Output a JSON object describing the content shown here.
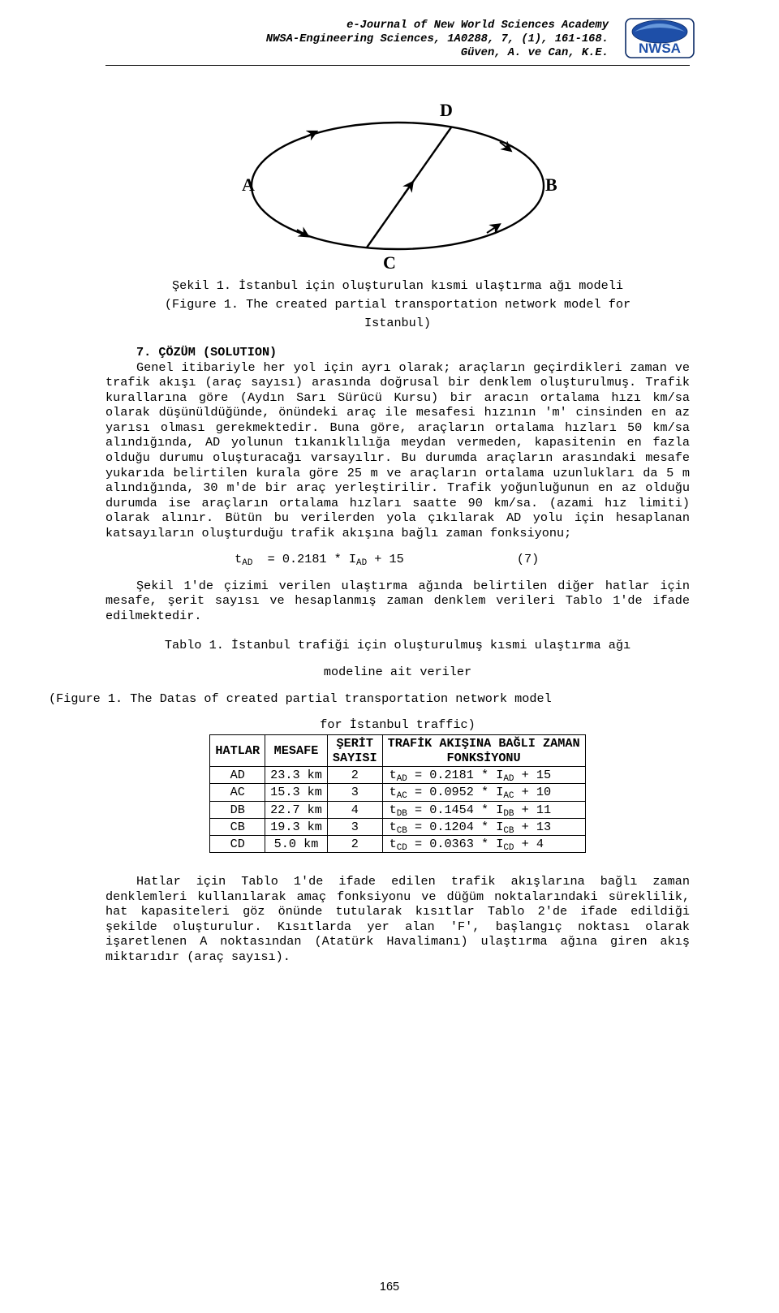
{
  "header": {
    "line1": "e-Journal of New World Sciences Academy",
    "line2": "NWSA-Engineering Sciences, 1A0288, 7, (1), 161-168.",
    "line3": "Güven, A. ve Can, K.E.",
    "logo_text": "NWSA",
    "logo_bg": "#1e4fa8",
    "logo_text_color": "#ffffff",
    "logo_border": "#0a2a66"
  },
  "figure": {
    "labels": {
      "A": "A",
      "B": "B",
      "C": "C",
      "D": "D"
    },
    "caption_line1": "Şekil 1. İstanbul için oluşturulan kısmi ulaştırma ağı modeli",
    "caption_line2": "(Figure 1. The created partial transportation network model for",
    "caption_line3": "Istanbul)"
  },
  "section7": {
    "heading": "7. ÇÖZÜM (SOLUTION)",
    "paragraph": "Genel itibariyle her yol için ayrı olarak; araçların geçirdikleri zaman ve trafik akışı (araç sayısı) arasında doğrusal bir denklem oluşturulmuş. Trafik kurallarına göre (Aydın Sarı Sürücü Kursu) bir aracın ortalama hızı km/sa olarak düşünüldüğünde, önündeki araç ile mesafesi hızının 'm' cinsinden en az yarısı olması gerekmektedir. Buna göre, araçların ortalama hızları 50 km/sa alındığında, AD yolunun tıkanıklılığa meydan vermeden, kapasitenin en fazla olduğu durumu oluşturacağı varsayılır. Bu durumda araçların arasındaki mesafe yukarıda belirtilen kurala göre 25 m ve araçların ortalama uzunlukları da 5 m alındığında, 30 m'de bir araç yerleştirilir. Trafik yoğunluğunun en az olduğu durumda ise araçların ortalama hızları saatte 90 km/sa. (azami hız limiti) olarak alınır. Bütün bu verilerden yola çıkılarak AD yolu için hesaplanan katsayıların oluşturduğu trafik akışına bağlı zaman fonksiyonu;"
  },
  "equation": {
    "lhs_var": "t",
    "lhs_sub": "AD",
    "coef": "0.2181",
    "rhs_var": "I",
    "rhs_sub": "AD",
    "const": "15",
    "num": "(7)"
  },
  "para2": "Şekil 1'de çizimi verilen ulaştırma ağında belirtilen diğer hatlar için mesafe, şerit sayısı ve hesaplanmış zaman denklem verileri Tablo 1'de ifade edilmektedir.",
  "table": {
    "caption_line1": "Tablo 1. İstanbul trafiği için oluşturulmuş kısmi ulaştırma ağı",
    "caption_line2": "modeline ait veriler",
    "caption_line3": "(Figure 1. The Datas of created partial transportation network model",
    "caption_line4": "for İstanbul traffic)",
    "headers": {
      "c1": "HATLAR",
      "c2": "MESAFE",
      "c3a": "ŞERİT",
      "c3b": "SAYISI",
      "c4a": "TRAFİK AKIŞINA BAĞLI ZAMAN",
      "c4b": "FONKSİYONU"
    },
    "rows": [
      {
        "line": "AD",
        "dist": "23.3 km",
        "lanes": "2",
        "tvar": "t",
        "tsub": "AD",
        "coef": "0.2181",
        "ivar": "I",
        "isub": "AD",
        "const": "15"
      },
      {
        "line": "AC",
        "dist": "15.3 km",
        "lanes": "3",
        "tvar": "t",
        "tsub": "AC",
        "coef": "0.0952",
        "ivar": "I",
        "isub": "AC",
        "const": "10"
      },
      {
        "line": "DB",
        "dist": "22.7 km",
        "lanes": "4",
        "tvar": "t",
        "tsub": "DB",
        "coef": "0.1454",
        "ivar": "I",
        "isub": "DB",
        "const": "11"
      },
      {
        "line": "CB",
        "dist": "19.3 km",
        "lanes": "3",
        "tvar": "t",
        "tsub": "CB",
        "coef": "0.1204",
        "ivar": "I",
        "isub": "CB",
        "const": "13"
      },
      {
        "line": "CD",
        "dist": "5.0 km",
        "lanes": "2",
        "tvar": "t",
        "tsub": "CD",
        "coef": "0.0363",
        "ivar": "I",
        "isub": "CD",
        "const": "4"
      }
    ]
  },
  "para3": "Hatlar için Tablo 1'de ifade edilen trafik akışlarına bağlı zaman denklemleri kullanılarak amaç fonksiyonu ve düğüm noktalarındaki süreklilik, hat kapasiteleri göz önünde tutularak kısıtlar Tablo 2'de ifade edildiği şekilde oluşturulur. Kısıtlarda yer alan 'F', başlangıç noktası olarak işaretlenen A noktasından (Atatürk Havalimanı) ulaştırma ağına giren akış miktarıdır (araç sayısı).",
  "page_number": "165"
}
